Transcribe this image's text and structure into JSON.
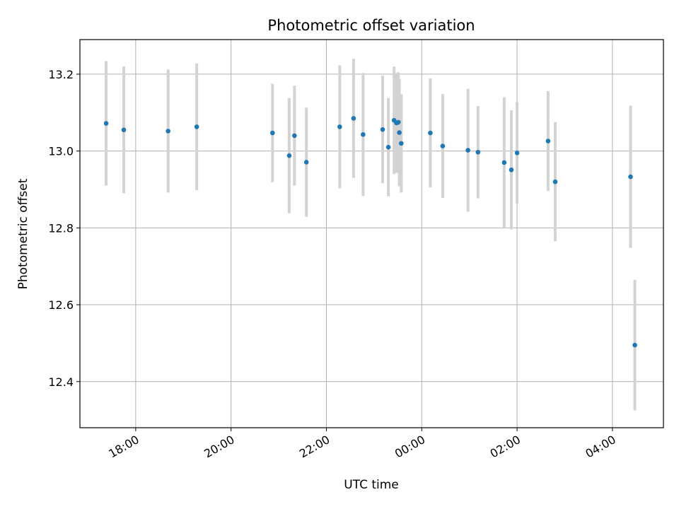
{
  "chart_data": {
    "type": "scatter",
    "title": "Photometric offset variation",
    "xlabel": "UTC time",
    "ylabel": "Photometric offset",
    "grid": true,
    "xlim": [
      16.83,
      29.07
    ],
    "ylim": [
      12.28,
      13.29
    ],
    "x_ticks": [
      {
        "value": 18,
        "label": "18:00"
      },
      {
        "value": 20,
        "label": "20:00"
      },
      {
        "value": 22,
        "label": "22:00"
      },
      {
        "value": 24,
        "label": "00:00"
      },
      {
        "value": 26,
        "label": "02:00"
      },
      {
        "value": 28,
        "label": "04:00"
      }
    ],
    "y_ticks": [
      12.4,
      12.6,
      12.8,
      13.0,
      13.2
    ],
    "colors": {
      "marker": "#1f77b4",
      "errorbar": "#d3d3d3",
      "grid": "#b0b0b0"
    },
    "series": [
      {
        "name": "offset",
        "points": [
          {
            "x": 17.38,
            "y": 13.072,
            "err": 0.162
          },
          {
            "x": 17.75,
            "y": 13.055,
            "err": 0.165
          },
          {
            "x": 18.68,
            "y": 13.052,
            "err": 0.16
          },
          {
            "x": 19.28,
            "y": 13.063,
            "err": 0.165
          },
          {
            "x": 20.87,
            "y": 13.047,
            "err": 0.128
          },
          {
            "x": 21.22,
            "y": 12.988,
            "err": 0.15
          },
          {
            "x": 21.33,
            "y": 13.04,
            "err": 0.13
          },
          {
            "x": 21.58,
            "y": 12.971,
            "err": 0.142
          },
          {
            "x": 22.28,
            "y": 13.063,
            "err": 0.16
          },
          {
            "x": 22.57,
            "y": 13.085,
            "err": 0.155
          },
          {
            "x": 22.77,
            "y": 13.043,
            "err": 0.16
          },
          {
            "x": 23.18,
            "y": 13.056,
            "err": 0.14
          },
          {
            "x": 23.3,
            "y": 13.01,
            "err": 0.128
          },
          {
            "x": 23.42,
            "y": 13.08,
            "err": 0.14
          },
          {
            "x": 23.47,
            "y": 13.073,
            "err": 0.13
          },
          {
            "x": 23.51,
            "y": 13.075,
            "err": 0.13
          },
          {
            "x": 23.53,
            "y": 13.048,
            "err": 0.14
          },
          {
            "x": 23.57,
            "y": 13.02,
            "err": 0.128
          },
          {
            "x": 24.18,
            "y": 13.047,
            "err": 0.142
          },
          {
            "x": 24.44,
            "y": 13.013,
            "err": 0.135
          },
          {
            "x": 24.97,
            "y": 13.002,
            "err": 0.16
          },
          {
            "x": 25.18,
            "y": 12.997,
            "err": 0.12
          },
          {
            "x": 25.73,
            "y": 12.97,
            "err": 0.17
          },
          {
            "x": 25.88,
            "y": 12.951,
            "err": 0.155
          },
          {
            "x": 26.0,
            "y": 12.995,
            "err": 0.132
          },
          {
            "x": 26.65,
            "y": 13.026,
            "err": 0.13
          },
          {
            "x": 26.8,
            "y": 12.92,
            "err": 0.155
          },
          {
            "x": 28.38,
            "y": 12.933,
            "err": 0.185
          },
          {
            "x": 28.47,
            "y": 12.495,
            "err": 0.17
          }
        ]
      }
    ]
  }
}
